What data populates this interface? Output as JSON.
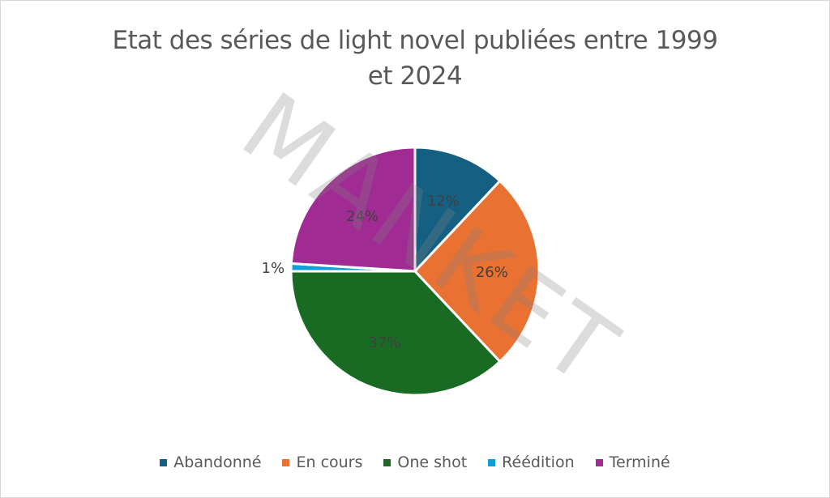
{
  "chart_data": {
    "type": "pie",
    "title": "Etat des séries de light novel publiées entre 1999 et 2024",
    "title_lines": [
      "Etat des séries de light novel publiées entre 1999",
      "et 2024"
    ],
    "categories": [
      "Abandonné",
      "En cours",
      "One shot",
      "Réédition",
      "Terminé"
    ],
    "values": [
      12,
      26,
      37,
      1,
      24
    ],
    "labels": [
      "12%",
      "26%",
      "37%",
      "1%",
      "24%"
    ],
    "colors": [
      "#156082",
      "#E97132",
      "#196B24",
      "#0F9ED5",
      "#A02B93"
    ],
    "legend_position": "bottom",
    "watermark": "MANKET"
  }
}
